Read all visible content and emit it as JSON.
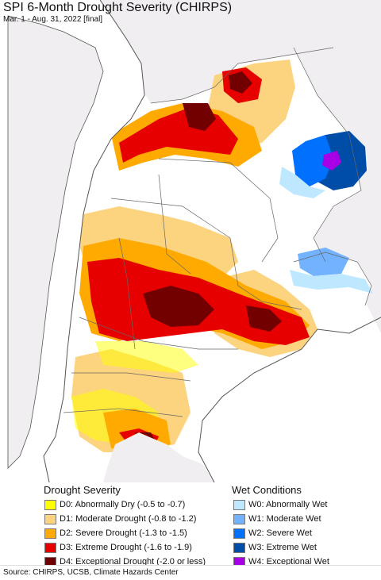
{
  "title": "SPI 6-Month Drought Severity (CHIRPS)",
  "subtitle": "Mar. 1 - Aug. 31, 2022 [final]",
  "legend": {
    "drought": {
      "title": "Drought Severity",
      "items": [
        {
          "label": "D0: Abnormally Dry (-0.5 to -0.7)",
          "color": "#ffff00"
        },
        {
          "label": "D1: Moderate Drought (-0.8 to -1.2)",
          "color": "#fcd37f"
        },
        {
          "label": "D2: Severe Drought (-1.3 to -1.5)",
          "color": "#ffaa00"
        },
        {
          "label": "D3: Extreme Drought (-1.6 to -1.9)",
          "color": "#e60000"
        },
        {
          "label": "D4: Exceptional Drought (-2.0 or less)",
          "color": "#730000"
        }
      ]
    },
    "wet": {
      "title": "Wet Conditions",
      "items": [
        {
          "label": "W0: Abnormally Wet",
          "color": "#bee8ff"
        },
        {
          "label": "W1: Moderate Wet",
          "color": "#73b2ff"
        },
        {
          "label": "W2: Severe Wet",
          "color": "#0070ff"
        },
        {
          "label": "W3: Extreme Wet",
          "color": "#004da8"
        },
        {
          "label": "W4: Exceptional Wet",
          "color": "#a800e6"
        }
      ]
    }
  },
  "source": "Source: CHIRPS, UCSB, Climate Hazards Center",
  "colors": {
    "ocean": "#ffffff",
    "outside_land": "#f0eef0",
    "normal": "#ffffff",
    "border": "#555555"
  }
}
